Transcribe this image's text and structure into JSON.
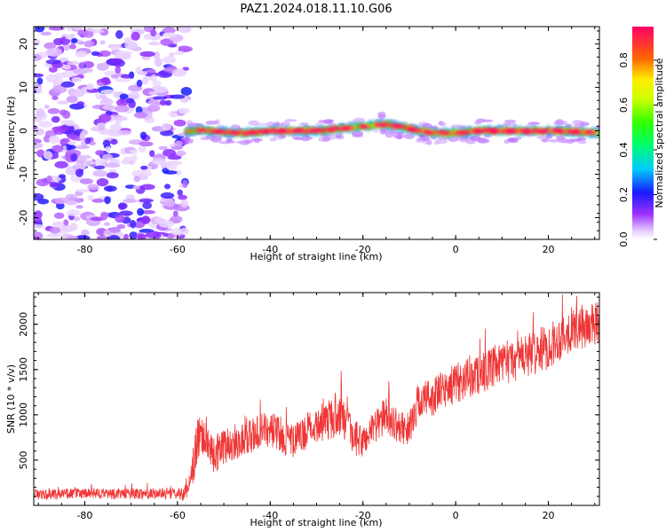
{
  "figure": {
    "title": "PAZ1.2024.018.11.10.G06"
  },
  "chart_data": [
    {
      "type": "heatmap",
      "panel": "top",
      "xlabel": "Height of straight line (km)",
      "ylabel": "Frequency (Hz)",
      "xlim": [
        -91,
        31
      ],
      "ylim": [
        -25,
        24
      ],
      "xticks": [
        -80,
        -60,
        -40,
        -20,
        0,
        20
      ],
      "xtick_labels": [
        "-80",
        "-60",
        "-40",
        "-20",
        "0",
        "20"
      ],
      "yticks": [
        -20,
        -10,
        0,
        10,
        20
      ],
      "ytick_labels": [
        "-20",
        "-10",
        "0",
        "10",
        "20"
      ],
      "colorbar": {
        "label": "Normalized spectral amplitude",
        "range": [
          0.0,
          0.95
        ],
        "ticks": [
          0.0,
          0.2,
          0.4,
          0.6,
          0.8
        ],
        "tick_labels": [
          "0.0",
          "0.2",
          "0.4",
          "0.6",
          "0.8"
        ]
      },
      "noise_region_x": [
        -91,
        -58
      ],
      "signal_region_x": [
        -58,
        31
      ],
      "signal_track": {
        "x": [
          -60,
          -55,
          -50,
          -45,
          -40,
          -35,
          -30,
          -25,
          -20,
          -15,
          -10,
          -5,
          0,
          5,
          10,
          15,
          20,
          25,
          31
        ],
        "freq": [
          -0.5,
          0.2,
          -0.3,
          -0.5,
          0.0,
          0.0,
          0.0,
          0.5,
          1.0,
          1.5,
          0.5,
          -0.5,
          -0.5,
          0.0,
          0.0,
          0.0,
          0.0,
          -0.2,
          -0.5
        ],
        "amplitude": [
          0.55,
          0.7,
          0.85,
          0.8,
          0.9,
          0.9,
          0.85,
          0.8,
          0.7,
          0.75,
          0.85,
          0.8,
          0.7,
          0.9,
          0.9,
          0.9,
          0.8,
          0.85,
          0.7
        ]
      }
    },
    {
      "type": "line",
      "panel": "bottom",
      "xlabel": "Height of straight line (km)",
      "ylabel": "SNR (10 * v/v)",
      "xlim": [
        -91,
        31
      ],
      "ylim": [
        0,
        2350
      ],
      "xticks": [
        -80,
        -60,
        -40,
        -20,
        0,
        20
      ],
      "xtick_labels": [
        "-80",
        "-60",
        "-40",
        "-20",
        "0",
        "20"
      ],
      "yticks": [
        500,
        1000,
        1500,
        2000
      ],
      "ytick_labels": [
        "500",
        "1000",
        "1500",
        "2000"
      ],
      "series": [
        {
          "color": "#ef3535",
          "x": [
            -91,
            -85,
            -80,
            -75,
            -70,
            -65,
            -60,
            -58,
            -56,
            -55,
            -52,
            -50,
            -45,
            -40,
            -35,
            -30,
            -27,
            -25,
            -22,
            -20,
            -18,
            -15,
            -12,
            -10,
            -8,
            -5,
            0,
            5,
            10,
            15,
            20,
            25,
            31
          ],
          "y": [
            120,
            130,
            130,
            130,
            130,
            130,
            130,
            140,
            600,
            850,
            550,
            650,
            750,
            850,
            700,
            900,
            950,
            1000,
            750,
            700,
            850,
            1000,
            850,
            850,
            1150,
            1200,
            1350,
            1450,
            1550,
            1650,
            1750,
            1950,
            2000
          ],
          "noise": [
            60,
            60,
            60,
            60,
            60,
            60,
            60,
            100,
            250,
            300,
            200,
            200,
            200,
            200,
            200,
            200,
            220,
            250,
            200,
            180,
            200,
            200,
            180,
            180,
            220,
            220,
            220,
            230,
            230,
            250,
            250,
            250,
            250
          ]
        }
      ]
    }
  ]
}
